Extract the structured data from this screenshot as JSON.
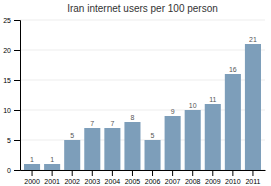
{
  "chart_data": {
    "type": "bar",
    "title": "Iran internet users per 100 person",
    "categories": [
      "2000",
      "2001",
      "2002",
      "2003",
      "2004",
      "2005",
      "2006",
      "2007",
      "2008",
      "2009",
      "2010",
      "2011"
    ],
    "values": [
      1,
      1,
      5,
      7,
      7,
      8,
      5,
      9,
      10,
      11,
      16,
      21
    ],
    "color": "#7d9eba",
    "ylim": [
      0,
      25
    ],
    "yticks": [
      0,
      5,
      10,
      15,
      20,
      25
    ],
    "grid": true,
    "data_labels": true
  }
}
